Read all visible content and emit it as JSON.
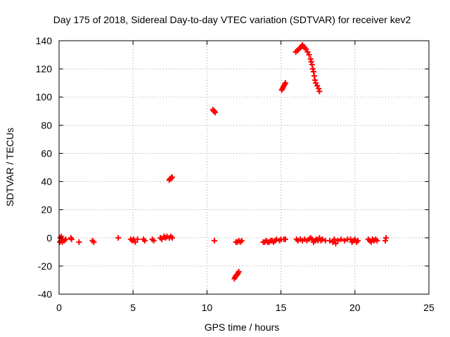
{
  "chart_data": {
    "type": "scatter",
    "title": "Day 175 of 2018, Sidereal Day-to-day VTEC variation (SDTVAR) for receiver kev2",
    "xlabel": "GPS time / hours",
    "ylabel": "SDTVAR / TECUs",
    "xlim": [
      0,
      25
    ],
    "ylim": [
      -40,
      140
    ],
    "xticks": [
      0,
      5,
      10,
      15,
      20,
      25
    ],
    "yticks": [
      -40,
      -20,
      0,
      20,
      40,
      60,
      80,
      100,
      120,
      140
    ],
    "grid": true,
    "marker": "plus",
    "color": "#ff0000",
    "series": [
      {
        "name": "SDTVAR",
        "points": [
          [
            0.05,
            -3
          ],
          [
            0.08,
            0
          ],
          [
            0.12,
            -2
          ],
          [
            0.15,
            1
          ],
          [
            0.18,
            -1
          ],
          [
            0.22,
            -3
          ],
          [
            0.35,
            -2
          ],
          [
            0.45,
            -1
          ],
          [
            0.8,
            0
          ],
          [
            0.85,
            -1
          ],
          [
            1.35,
            -3
          ],
          [
            2.25,
            -2
          ],
          [
            2.35,
            -3
          ],
          [
            4.0,
            0
          ],
          [
            4.85,
            -1
          ],
          [
            4.95,
            -2
          ],
          [
            5.05,
            -1
          ],
          [
            5.15,
            -3
          ],
          [
            5.3,
            -1
          ],
          [
            5.7,
            -1
          ],
          [
            5.8,
            -2
          ],
          [
            6.3,
            -1
          ],
          [
            6.4,
            -2
          ],
          [
            6.85,
            0
          ],
          [
            6.95,
            -1
          ],
          [
            7.1,
            1
          ],
          [
            7.2,
            0
          ],
          [
            7.3,
            1
          ],
          [
            7.45,
            0
          ],
          [
            7.55,
            1
          ],
          [
            7.65,
            0
          ],
          [
            7.45,
            41
          ],
          [
            7.5,
            42
          ],
          [
            7.55,
            42
          ],
          [
            7.6,
            43
          ],
          [
            7.65,
            43
          ],
          [
            10.4,
            91
          ],
          [
            10.45,
            90
          ],
          [
            10.5,
            90
          ],
          [
            10.55,
            89
          ],
          [
            10.5,
            -2
          ],
          [
            11.85,
            -29
          ],
          [
            11.9,
            -28
          ],
          [
            11.95,
            -27
          ],
          [
            12.0,
            -26.5
          ],
          [
            12.05,
            -26
          ],
          [
            12.1,
            -25
          ],
          [
            12.15,
            -24
          ],
          [
            11.95,
            -3
          ],
          [
            12.05,
            -3
          ],
          [
            12.15,
            -2
          ],
          [
            12.25,
            -3
          ],
          [
            12.35,
            -2
          ],
          [
            13.8,
            -3
          ],
          [
            13.9,
            -3
          ],
          [
            14.0,
            -2
          ],
          [
            14.1,
            -3
          ],
          [
            14.2,
            -3
          ],
          [
            14.3,
            -2
          ],
          [
            14.4,
            -2
          ],
          [
            14.5,
            -3
          ],
          [
            14.6,
            -2
          ],
          [
            14.7,
            -1
          ],
          [
            14.9,
            -2
          ],
          [
            15.0,
            -1
          ],
          [
            15.2,
            -1
          ],
          [
            15.3,
            -1
          ],
          [
            15.05,
            105
          ],
          [
            15.1,
            106
          ],
          [
            15.15,
            107
          ],
          [
            15.2,
            108
          ],
          [
            15.25,
            109
          ],
          [
            15.3,
            110
          ],
          [
            16.0,
            132
          ],
          [
            16.1,
            133
          ],
          [
            16.2,
            134
          ],
          [
            16.3,
            135
          ],
          [
            16.4,
            136
          ],
          [
            16.45,
            137
          ],
          [
            16.5,
            136
          ],
          [
            16.6,
            135
          ],
          [
            16.7,
            134
          ],
          [
            16.8,
            132
          ],
          [
            16.9,
            130
          ],
          [
            17.0,
            127
          ],
          [
            17.05,
            125
          ],
          [
            17.1,
            123
          ],
          [
            17.15,
            120
          ],
          [
            17.2,
            118
          ],
          [
            17.25,
            115
          ],
          [
            17.3,
            112
          ],
          [
            17.35,
            110
          ],
          [
            17.45,
            108
          ],
          [
            17.55,
            106
          ],
          [
            17.6,
            104
          ],
          [
            16.05,
            -1
          ],
          [
            16.15,
            -2
          ],
          [
            16.3,
            -1
          ],
          [
            16.45,
            -2
          ],
          [
            16.6,
            -1
          ],
          [
            16.75,
            -2
          ],
          [
            16.9,
            -1
          ],
          [
            17.0,
            0
          ],
          [
            17.1,
            -1
          ],
          [
            17.2,
            -3
          ],
          [
            17.3,
            -2
          ],
          [
            17.4,
            -1
          ],
          [
            17.5,
            -2
          ],
          [
            17.6,
            0
          ],
          [
            17.7,
            -2
          ],
          [
            17.8,
            -1
          ],
          [
            18.0,
            -2
          ],
          [
            18.3,
            -2
          ],
          [
            18.5,
            -3
          ],
          [
            18.6,
            -1
          ],
          [
            18.7,
            -4
          ],
          [
            18.85,
            -2
          ],
          [
            19.05,
            -1
          ],
          [
            19.3,
            -2
          ],
          [
            19.5,
            -1
          ],
          [
            19.7,
            -1
          ],
          [
            19.8,
            -3
          ],
          [
            19.9,
            -2
          ],
          [
            20.0,
            -1
          ],
          [
            20.1,
            -3
          ],
          [
            20.2,
            -2
          ],
          [
            20.9,
            -1
          ],
          [
            21.0,
            -2
          ],
          [
            21.1,
            -3
          ],
          [
            21.2,
            -1
          ],
          [
            21.3,
            -2
          ],
          [
            21.4,
            -1
          ],
          [
            21.5,
            -2
          ],
          [
            22.05,
            -2
          ],
          [
            22.1,
            0
          ]
        ]
      }
    ]
  }
}
